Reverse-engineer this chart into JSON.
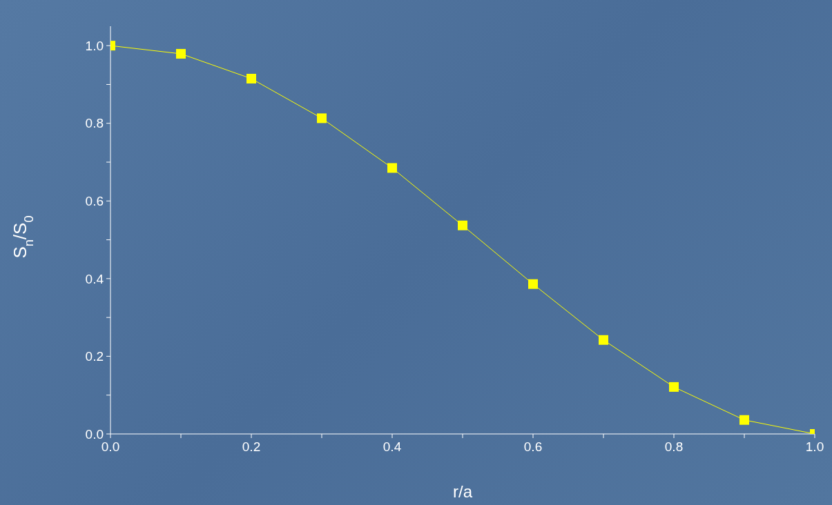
{
  "chart_data": {
    "type": "line",
    "xlabel": "r/a",
    "ylabel": "S$_{n}$/S$_{0}$",
    "x": [
      0,
      0.1,
      0.2,
      0.3,
      0.4,
      0.5,
      0.6,
      0.7,
      0.8,
      0.9,
      1.0
    ],
    "series": [
      {
        "color": "#ffff00",
        "values": [
          1.0,
          0.979,
          0.915,
          0.813,
          0.685,
          0.537,
          0.386,
          0.242,
          0.121,
          0.036,
          0.0
        ]
      }
    ],
    "xlim": [
      0,
      1.0
    ],
    "xticks": [
      {
        "value": 0,
        "label": "0.0"
      },
      {
        "value": 0.1,
        "label": null
      },
      {
        "value": 0.2,
        "label": "0.2"
      },
      {
        "value": 0.3,
        "label": null
      },
      {
        "value": 0.4,
        "label": "0.4"
      },
      {
        "value": 0.5,
        "label": null
      },
      {
        "value": 0.6,
        "label": "0.6"
      },
      {
        "value": 0.7,
        "label": null
      },
      {
        "value": 0.8,
        "label": "0.8"
      },
      {
        "value": 0.9,
        "label": null
      },
      {
        "value": 1.0,
        "label": "1.0"
      }
    ],
    "ylim": [
      0,
      1.05
    ],
    "yticks": [
      {
        "value": 0,
        "label": "0.0"
      },
      {
        "value": 0.1,
        "label": null
      },
      {
        "value": 0.2,
        "label": "0.2"
      },
      {
        "value": 0.3,
        "label": null
      },
      {
        "value": 0.4,
        "label": "0.4"
      },
      {
        "value": 0.5,
        "label": null
      },
      {
        "value": 0.6,
        "label": "0.6"
      },
      {
        "value": 0.7,
        "label": null
      },
      {
        "value": 0.8,
        "label": "0.8"
      },
      {
        "value": 0.9,
        "label": null
      },
      {
        "value": 1.0,
        "label": "1.0"
      }
    ],
    "grid": false,
    "legend": false,
    "marker": "square",
    "line_style": "solid"
  }
}
